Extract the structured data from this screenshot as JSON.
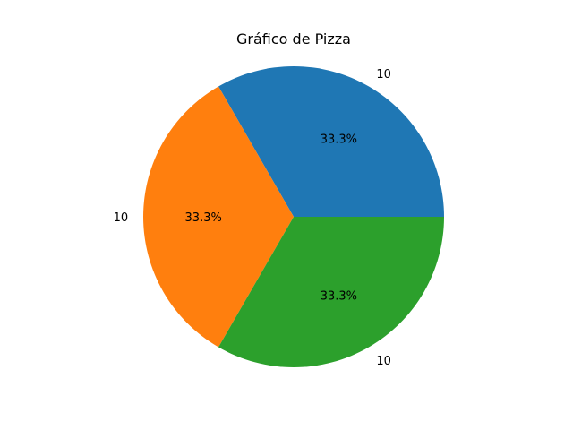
{
  "chart_data": {
    "type": "pie",
    "title": "Gráfico de Pizza",
    "slices": [
      {
        "label": "10",
        "value": 10,
        "pct_label": "33.3%",
        "color": "#1f77b4"
      },
      {
        "label": "10",
        "value": 10,
        "pct_label": "33.3%",
        "color": "#ff7f0e"
      },
      {
        "label": "10",
        "value": 10,
        "pct_label": "33.3%",
        "color": "#2ca02c"
      }
    ],
    "start_angle_deg": 0,
    "direction": "counterclockwise",
    "legend": "none"
  }
}
